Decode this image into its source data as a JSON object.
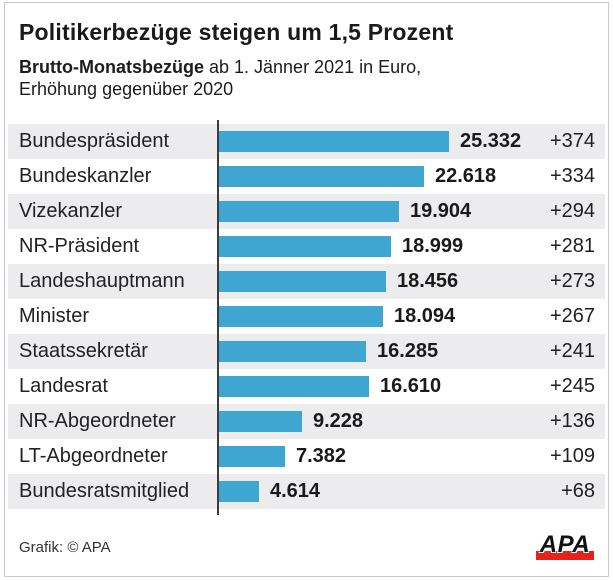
{
  "header": {
    "title": "Politikerbezüge steigen um 1,5 Prozent",
    "subtitle_bold": "Brutto-Monatsbezüge",
    "subtitle_rest": " ab 1. Jänner 2021 in Euro,",
    "subtitle_line2": "Erhöhung gegenüber 2020"
  },
  "footer": {
    "credit": "Grafik: © APA",
    "logo_text": "APA"
  },
  "colors": {
    "bar": "#3FA6D1",
    "row_alt": "#ECECEE",
    "axis": "#3C3C3C",
    "logo_red": "#E5231B"
  },
  "chart_data": {
    "type": "bar",
    "orientation": "horizontal",
    "title": "Politikerbezüge steigen um 1,5 Prozent",
    "subtitle": "Brutto-Monatsbezüge ab 1. Jänner 2021 in Euro, Erhöhung gegenüber 2020",
    "xlabel": "",
    "ylabel": "",
    "unit": "Euro",
    "xlim": [
      0,
      25332
    ],
    "grid": false,
    "legend": false,
    "categories": [
      "Bundespräsident",
      "Bundeskanzler",
      "Vizekanzler",
      "NR-Präsident",
      "Landeshauptmann",
      "Minister",
      "Staatssekretär",
      "Landesrat",
      "NR-Abgeordneter",
      "LT-Abgeordneter",
      "Bundesratsmitglied"
    ],
    "values": [
      25332,
      22618,
      19904,
      18999,
      18456,
      18094,
      16285,
      16610,
      9228,
      7382,
      4614
    ],
    "rows": [
      {
        "label": "Bundespräsident",
        "value": 25332,
        "value_label": "25.332",
        "delta": "+374"
      },
      {
        "label": "Bundeskanzler",
        "value": 22618,
        "value_label": "22.618",
        "delta": "+334"
      },
      {
        "label": "Vizekanzler",
        "value": 19904,
        "value_label": "19.904",
        "delta": "+294"
      },
      {
        "label": "NR-Präsident",
        "value": 18999,
        "value_label": "18.999",
        "delta": "+281"
      },
      {
        "label": "Landeshauptmann",
        "value": 18456,
        "value_label": "18.456",
        "delta": "+273"
      },
      {
        "label": "Minister",
        "value": 18094,
        "value_label": "18.094",
        "delta": "+267"
      },
      {
        "label": "Staatssekretär",
        "value": 16285,
        "value_label": "16.285",
        "delta": "+241"
      },
      {
        "label": "Landesrat",
        "value": 16610,
        "value_label": "16.610",
        "delta": "+245"
      },
      {
        "label": "NR-Abgeordneter",
        "value": 9228,
        "value_label": "9.228",
        "delta": "+136"
      },
      {
        "label": "LT-Abgeordneter",
        "value": 7382,
        "value_label": "7.382",
        "delta": "+109"
      },
      {
        "label": "Bundesratsmitglied",
        "value": 4614,
        "value_label": "4.614",
        "delta": "+68"
      }
    ]
  }
}
